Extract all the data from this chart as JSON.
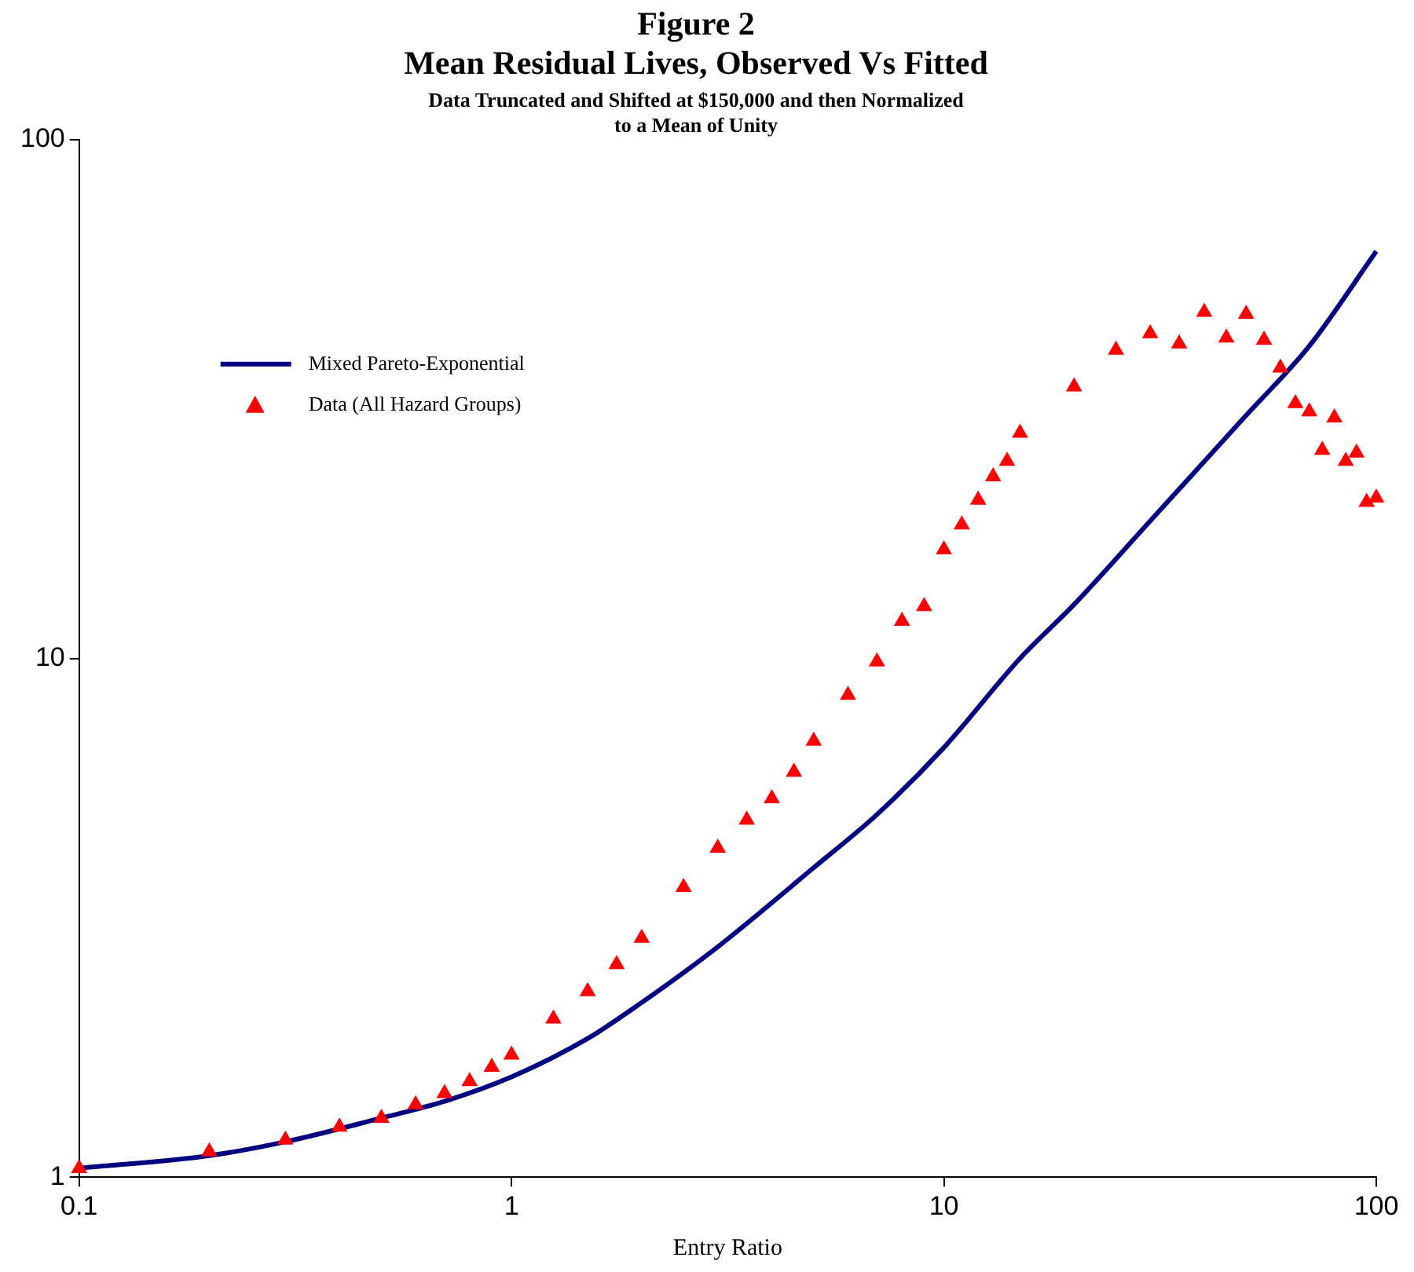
{
  "chart_data": {
    "type": "scatter",
    "title": "Figure 2\nMean Residual Lives, Observed Vs Fitted",
    "subtitle": "Data Truncated and Shifted at $150,000 and then Normalized\nto a Mean of Unity",
    "xlabel": "Entry Ratio",
    "log": "xy",
    "xlim": [
      0.1,
      100
    ],
    "xticks": [
      0.1,
      1,
      10,
      100
    ],
    "ylim": [
      1,
      100
    ],
    "yticks": [
      1,
      10,
      100
    ],
    "grid": false,
    "legend": "top left",
    "series": [
      {
        "name": "Mixed Pareto-Exponential",
        "type": "line",
        "color": "#000080",
        "marker": "none",
        "x": [
          0.1,
          0.2,
          0.3,
          0.5,
          0.7,
          1,
          1.5,
          2,
          3,
          5,
          7,
          10,
          15,
          20,
          30,
          50,
          70,
          100
        ],
        "values": [
          1.04,
          1.1,
          1.17,
          1.3,
          1.4,
          1.56,
          1.85,
          2.17,
          2.78,
          3.95,
          5.0,
          6.73,
          10,
          12.7,
          18.4,
          29.4,
          40,
          60.9
        ]
      },
      {
        "name": "Data (All Hazard Groups)",
        "color": "#ff0000",
        "marker": "triangle",
        "x": [
          0.1,
          0.2,
          0.3,
          0.4,
          0.5,
          0.6,
          0.7,
          0.8,
          0.9,
          1,
          1.25,
          1.5,
          1.75,
          2,
          2.5,
          3,
          3.5,
          4,
          4.5,
          5,
          6,
          7,
          8,
          9,
          10,
          11,
          12,
          13,
          14,
          15,
          20,
          25,
          30,
          35,
          40,
          45,
          50,
          55,
          60,
          65,
          70,
          75,
          80,
          85,
          90,
          95,
          100
        ],
        "values": [
          1.04,
          1.12,
          1.18,
          1.25,
          1.3,
          1.38,
          1.45,
          1.53,
          1.63,
          1.72,
          2.02,
          2.28,
          2.57,
          2.89,
          3.62,
          4.31,
          4.88,
          5.37,
          6.04,
          6.93,
          8.5,
          9.85,
          11.8,
          12.6,
          16.2,
          18.1,
          20.2,
          22.4,
          24.0,
          27.2,
          33.4,
          39.3,
          42.3,
          40.4,
          46.5,
          41.5,
          46.1,
          41.1,
          36.3,
          31,
          29.9,
          25.2,
          29.1,
          24,
          24.9,
          20.0,
          20.4
        ]
      }
    ]
  }
}
